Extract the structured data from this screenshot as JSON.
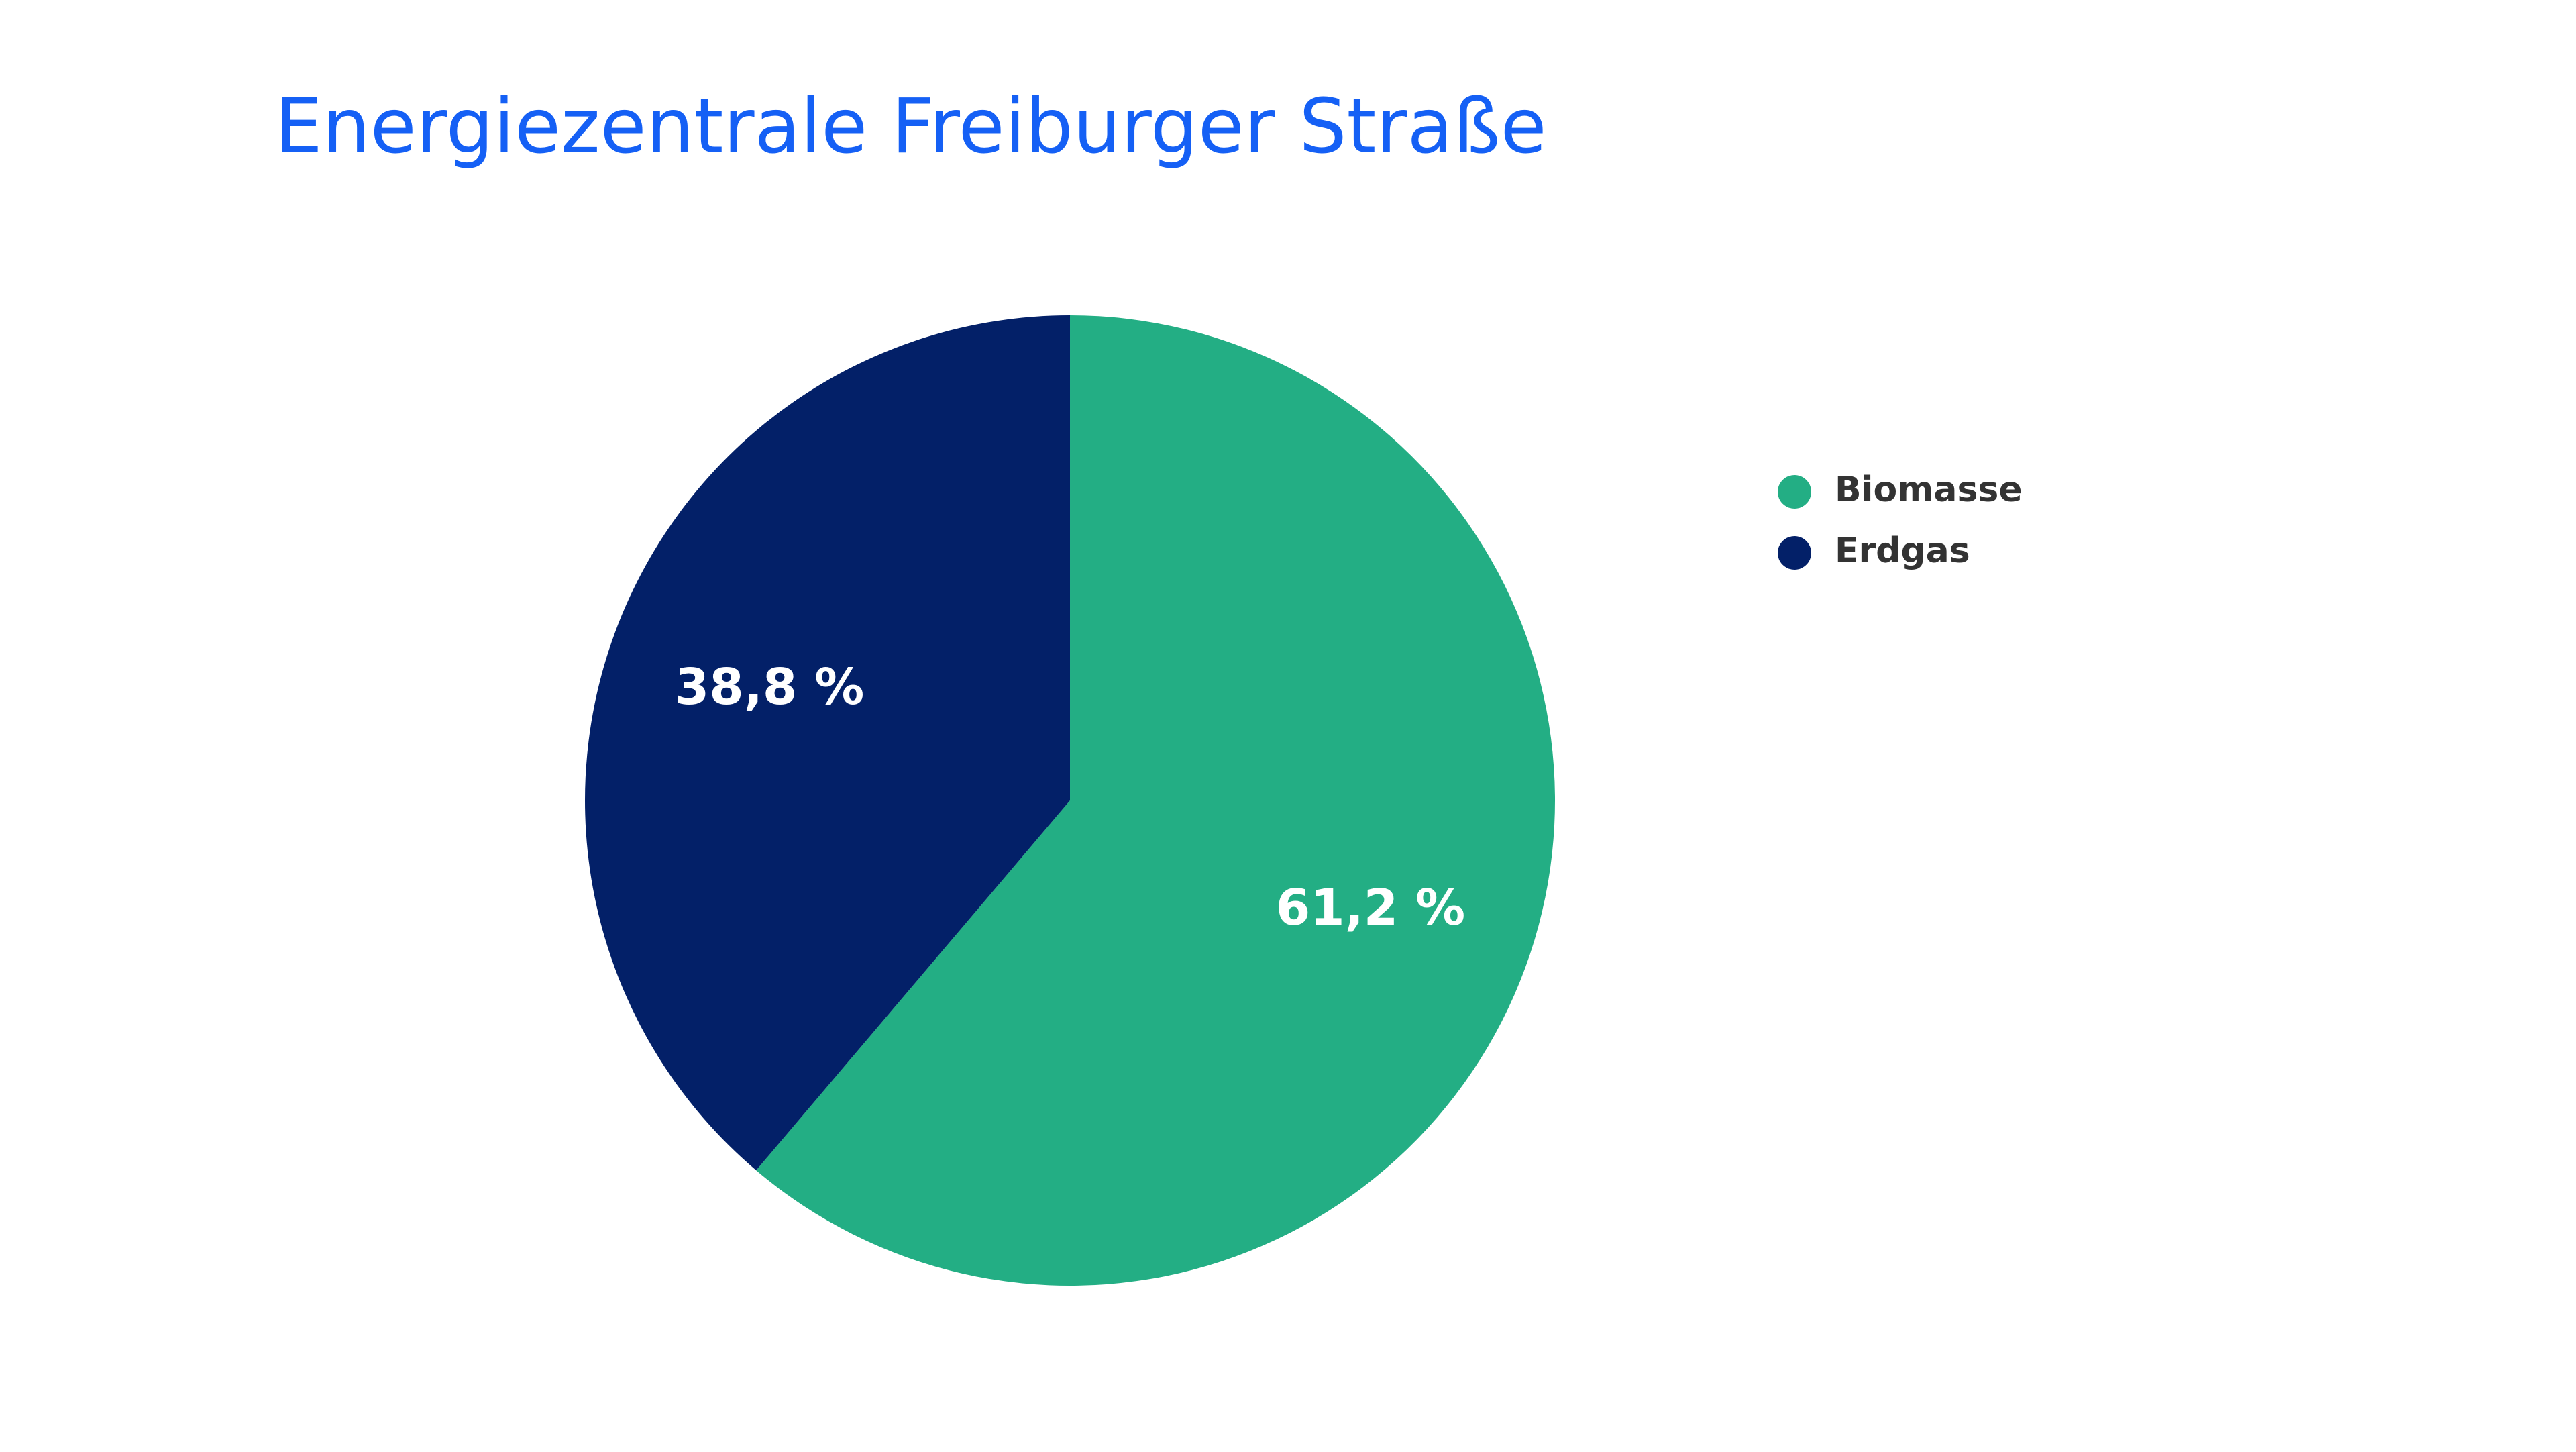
{
  "chart_data": {
    "type": "pie",
    "title": "Energiezentrale Freiburger Straße",
    "categories": [
      "Biomasse",
      "Erdgas"
    ],
    "values": [
      61.2,
      38.8
    ],
    "value_labels": [
      "61,2 %",
      "38,8 %"
    ],
    "colors": [
      "#23ae84",
      "#032068"
    ],
    "legend": "right"
  }
}
